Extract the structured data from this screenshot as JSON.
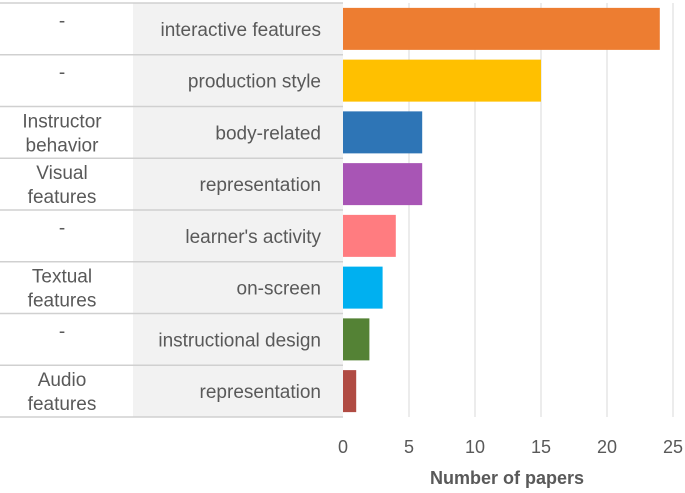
{
  "chart_data": {
    "type": "bar",
    "orientation": "horizontal",
    "title": "",
    "xlabel": "Number of papers",
    "ylabel": "",
    "xlim": [
      0,
      25
    ],
    "xticks": [
      "0",
      "5",
      "10",
      "15",
      "20",
      "25"
    ],
    "grid": true,
    "legend": "none",
    "groups": [
      "-",
      "-",
      "Instructor behavior",
      "Visual features",
      "-",
      "Textual features",
      "-",
      "Audio features"
    ],
    "categories": [
      "interactive features",
      "production style",
      "body-related",
      "representation",
      "learner's activity",
      "on-screen",
      "instructional design",
      "representation"
    ],
    "values": [
      24,
      15,
      6,
      6,
      4,
      3,
      2,
      1
    ],
    "colors": [
      "#ED7D31",
      "#FFC000",
      "#2E75B6",
      "#A855B5",
      "#FF7C80",
      "#00B0F0",
      "#548235",
      "#B04B43"
    ]
  }
}
